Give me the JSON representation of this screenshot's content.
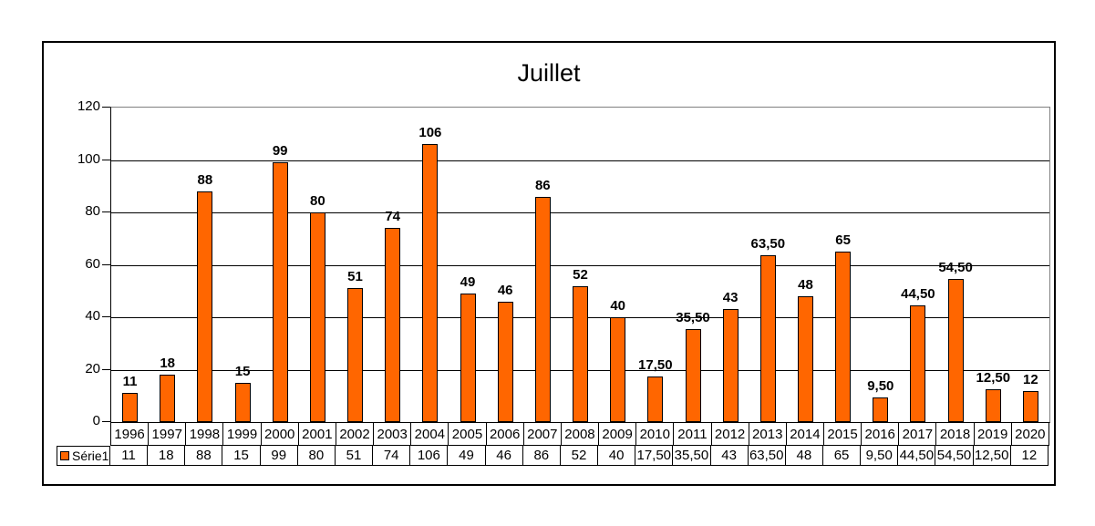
{
  "colors": {
    "bar_fill": "#FF6600",
    "bar_border": "#000000",
    "grid": "#000000",
    "plot_border": "#808080",
    "frame_border": "#000000"
  },
  "chart_data": {
    "type": "bar",
    "title": "Juillet",
    "xlabel": "",
    "ylabel": "",
    "categories": [
      "1996",
      "1997",
      "1998",
      "1999",
      "2000",
      "2001",
      "2002",
      "2003",
      "2004",
      "2005",
      "2006",
      "2007",
      "2008",
      "2009",
      "2010",
      "2011",
      "2012",
      "2013",
      "2014",
      "2015",
      "2016",
      "2017",
      "2018",
      "2019",
      "2020"
    ],
    "series": [
      {
        "name": "Série1",
        "values": [
          11,
          18,
          88,
          15,
          99,
          80,
          51,
          74,
          106,
          49,
          46,
          86,
          52,
          40,
          17.5,
          35.5,
          43,
          63.5,
          48,
          65,
          9.5,
          44.5,
          54.5,
          12.5,
          12
        ],
        "labels": [
          "11",
          "18",
          "88",
          "15",
          "99",
          "80",
          "51",
          "74",
          "106",
          "49",
          "46",
          "86",
          "52",
          "40",
          "17,50",
          "35,50",
          "43",
          "63,50",
          "48",
          "65",
          "9,50",
          "44,50",
          "54,50",
          "12,50",
          "12"
        ]
      }
    ],
    "ylim": [
      0,
      120
    ],
    "yticks": [
      0,
      20,
      40,
      60,
      80,
      100,
      120
    ],
    "grid": true,
    "legend_position": "bottom-table-left",
    "data_labels": true
  }
}
